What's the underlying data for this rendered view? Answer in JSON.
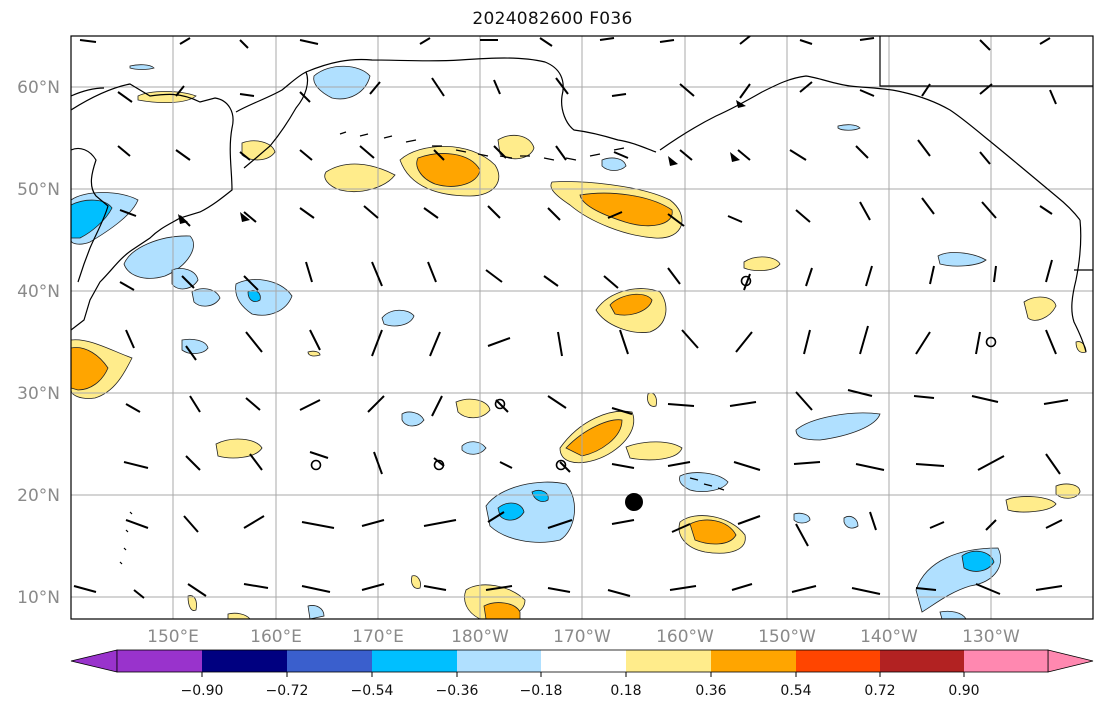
{
  "title": "2024082600 F036",
  "map": {
    "lat_labels": [
      "60°N",
      "50°N",
      "40°N",
      "30°N",
      "20°N",
      "10°N"
    ],
    "lon_labels": [
      "150°E",
      "160°E",
      "170°E",
      "180°W",
      "170°W",
      "160°W",
      "150°W",
      "140°W",
      "130°W"
    ]
  },
  "colorbar": {
    "ticks": [
      "−0.90",
      "−0.72",
      "−0.54",
      "−0.36",
      "−0.18",
      "0.18",
      "0.36",
      "0.54",
      "0.72",
      "0.90"
    ],
    "colors": [
      "#9933cc",
      "#000080",
      "#3a5fcd",
      "#00bfff",
      "#b0e0ff",
      "#ffffff",
      "#ffec8b",
      "#ffa500",
      "#ff4500",
      "#b22222",
      "#ff88b0"
    ]
  },
  "colors": {
    "land_outline": "#000000",
    "grid": "#a9a9a9",
    "positive_low": "#ffec8b",
    "positive_mid": "#ffa500",
    "negative_low": "#b0e0ff",
    "negative_mid": "#00bfff"
  }
}
